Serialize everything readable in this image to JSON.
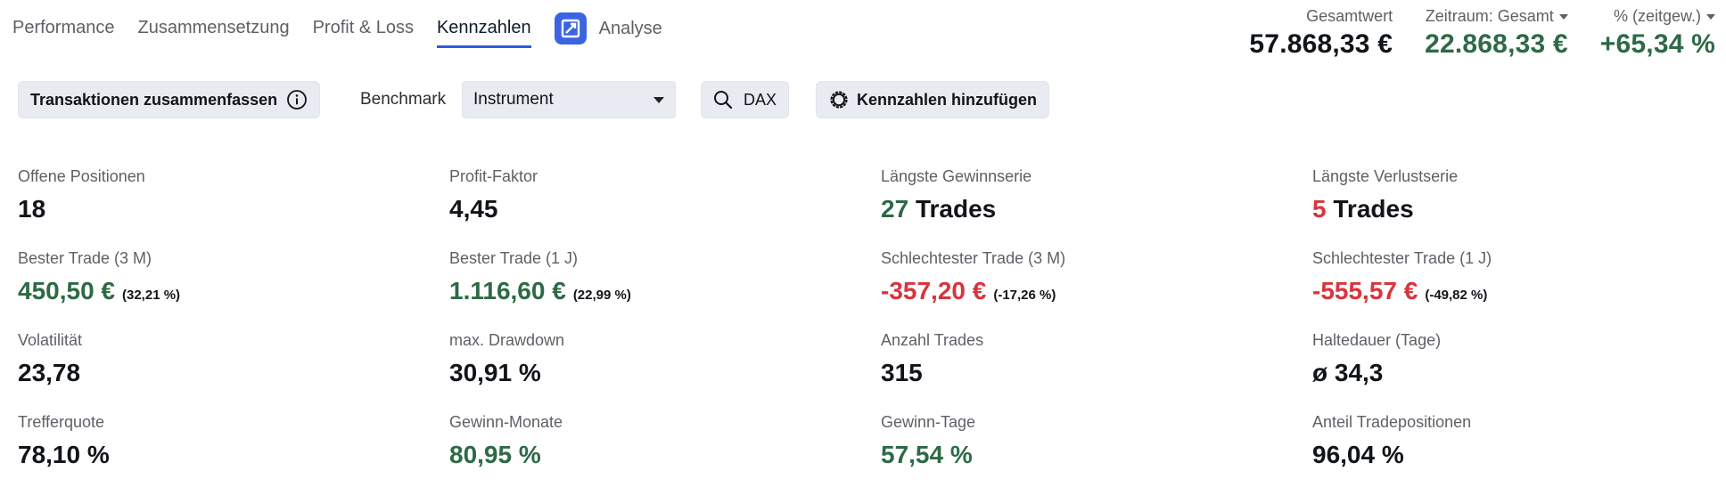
{
  "tabs": [
    {
      "label": "Performance"
    },
    {
      "label": "Zusammensetzung"
    },
    {
      "label": "Profit & Loss"
    },
    {
      "label": "Kennzahlen"
    }
  ],
  "active_tab": "Kennzahlen",
  "analyse": {
    "label": "Analyse",
    "icon": "analyse-logo-icon",
    "color": "#3b64e3"
  },
  "summary": {
    "total": {
      "label": "Gesamtwert",
      "value": "57.868,33 €"
    },
    "period": {
      "label": "Zeitraum: Gesamt",
      "value": "22.868,33 €"
    },
    "percent": {
      "label": "% (zeitgew.)",
      "value": "+65,34 %"
    }
  },
  "toolbar": {
    "summarize_label": "Transaktionen zusammenfassen",
    "benchmark_label": "Benchmark",
    "benchmark_select": "Instrument",
    "dax_label": "DAX",
    "add_metrics_label": "Kennzahlen hinzufügen"
  },
  "colors": {
    "positive": "#2d6a45",
    "negative": "#d9343d",
    "accent": "#2b5cde"
  },
  "metrics": [
    {
      "label": "Offene Positionen",
      "value": "18"
    },
    {
      "label": "Profit-Faktor",
      "value": "4,45"
    },
    {
      "label": "Längste Gewinnserie",
      "number": "27",
      "unit": "Trades"
    },
    {
      "label": "Längste Verlustserie",
      "number": "5",
      "unit": "Trades"
    },
    {
      "label": "Bester Trade (3 M)",
      "value": "450,50 €",
      "pct": "(32,21 %)"
    },
    {
      "label": "Bester Trade (1 J)",
      "value": "1.116,60 €",
      "pct": "(22,99 %)"
    },
    {
      "label": "Schlechtester Trade (3 M)",
      "value": "-357,20 €",
      "pct": "(-17,26 %)"
    },
    {
      "label": "Schlechtester Trade (1 J)",
      "value": "-555,57 €",
      "pct": "(-49,82 %)"
    },
    {
      "label": "Volatilität",
      "value": "23,78"
    },
    {
      "label": "max. Drawdown",
      "value": "30,91 %"
    },
    {
      "label": "Anzahl Trades",
      "value": "315"
    },
    {
      "label": "Haltedauer (Tage)",
      "value": "ø 34,3"
    },
    {
      "label": "Trefferquote",
      "value": "78,10 %"
    },
    {
      "label": "Gewinn-Monate",
      "value": "80,95 %"
    },
    {
      "label": "Gewinn-Tage",
      "value": "57,54 %"
    },
    {
      "label": "Anteil Tradepositionen",
      "value": "96,04 %"
    }
  ]
}
